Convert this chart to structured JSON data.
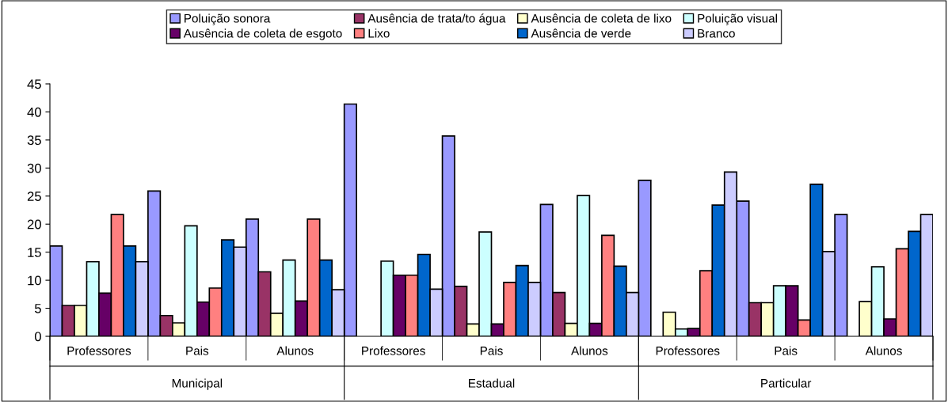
{
  "chart_data": {
    "type": "bar",
    "categories": [
      "Professores",
      "Pais",
      "Alunos",
      "Professores",
      "Pais",
      "Alunos",
      "Professores",
      "Pais",
      "Alunos"
    ],
    "annotations": [
      "Municipal",
      "Estadual",
      "Particular"
    ],
    "ylim": [
      0,
      45
    ],
    "yticks": [
      0,
      5,
      10,
      15,
      20,
      25,
      30,
      35,
      40,
      45
    ],
    "grid": false,
    "legend": "top",
    "series": [
      {
        "name": "Poluição sonora",
        "color": "#9999ff",
        "values": [
          16.1,
          25.9,
          20.9,
          41.4,
          35.7,
          23.5,
          27.8,
          24.1,
          21.7
        ]
      },
      {
        "name": "Ausência de trata/to água",
        "color": "#993366",
        "values": [
          5.5,
          3.7,
          11.5,
          null,
          8.9,
          7.8,
          null,
          6.0,
          null
        ]
      },
      {
        "name": "Ausência de coleta de lixo",
        "color": "#ffffcc",
        "values": [
          5.5,
          2.4,
          4.1,
          null,
          2.2,
          2.3,
          4.3,
          6.0,
          6.2
        ]
      },
      {
        "name": "Poluição visual",
        "color": "#ccffff",
        "values": [
          13.3,
          19.7,
          13.6,
          13.4,
          18.6,
          25.1,
          1.3,
          9.0,
          12.4
        ]
      },
      {
        "name": "Ausência de coleta de esgoto",
        "color": "#660066",
        "values": [
          7.7,
          6.1,
          6.3,
          10.9,
          2.2,
          2.3,
          1.4,
          9.0,
          3.1
        ]
      },
      {
        "name": "Lixo",
        "color": "#ff8080",
        "values": [
          21.7,
          8.6,
          20.9,
          10.9,
          9.6,
          18.0,
          11.7,
          2.9,
          15.6
        ]
      },
      {
        "name": "Ausência de verde",
        "color": "#0066cc",
        "values": [
          16.1,
          17.2,
          13.6,
          14.6,
          12.6,
          12.5,
          23.4,
          27.1,
          18.7
        ]
      },
      {
        "name": "Branco",
        "color": "#ccccff",
        "values": [
          13.3,
          15.9,
          8.3,
          8.4,
          9.6,
          7.8,
          29.3,
          15.1,
          21.7
        ]
      }
    ]
  }
}
